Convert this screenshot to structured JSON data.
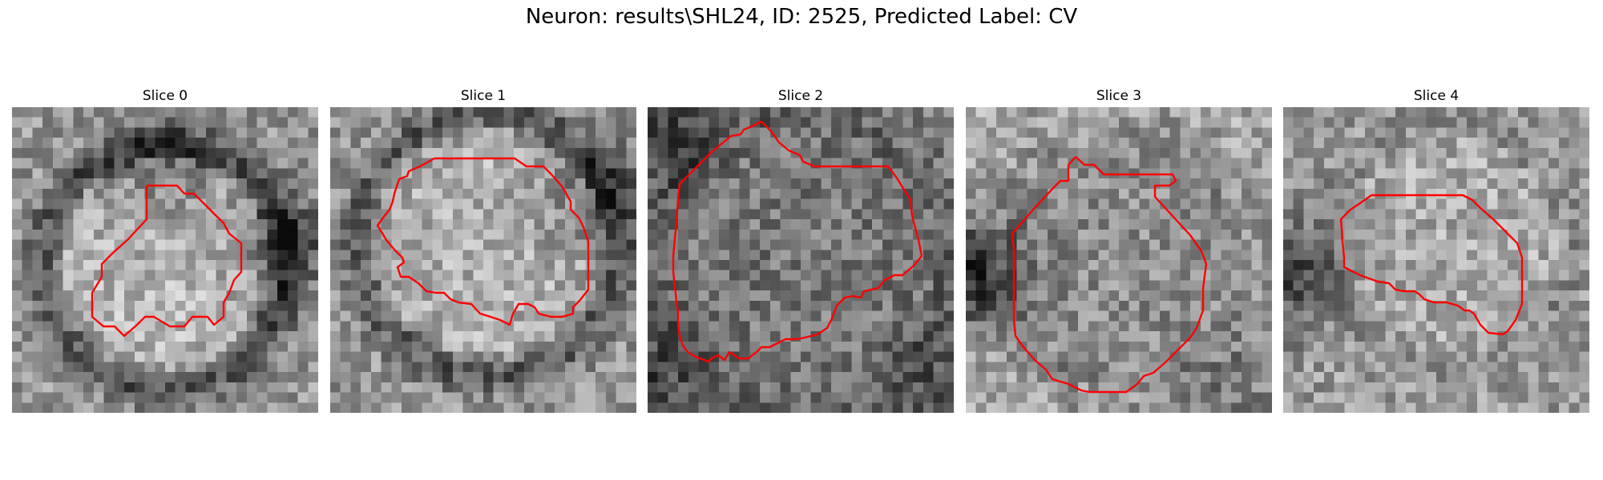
{
  "figure": {
    "title": "Neuron: results\\SHL24, ID: 2525, Predicted Label: CV"
  },
  "colors": {
    "contour": "#ff0000",
    "background": "#ffffff"
  },
  "slices": [
    {
      "label": "Slice 0"
    },
    {
      "label": "Slice 1"
    },
    {
      "label": "Slice 2"
    },
    {
      "label": "Slice 3"
    },
    {
      "label": "Slice 4"
    }
  ]
}
